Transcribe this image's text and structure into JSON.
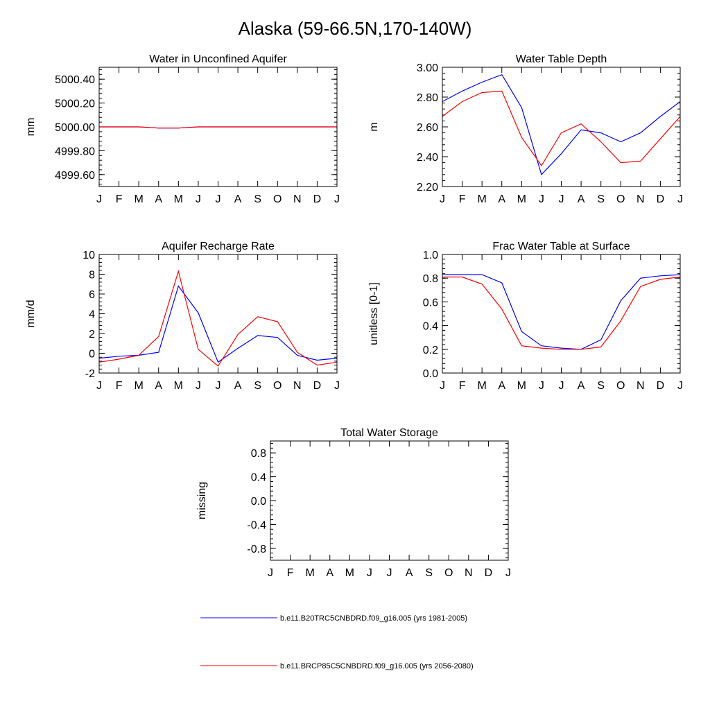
{
  "page_title": "Alaska (59-66.5N,170-140W)",
  "colors": {
    "series_1": "#0000ff",
    "series_2": "#ff0000",
    "axis": "#000000"
  },
  "legend": [
    {
      "label": "b.e11.B20TRC5CNBDRD.f09_g16.005 (yrs 1981-2005)",
      "color": "#0000ff"
    },
    {
      "label": "b.e11.BRCP85C5CNBDRD.f09_g16.005 (yrs 2056-2080)",
      "color": "#ff0000"
    }
  ],
  "chart_data": [
    {
      "type": "line",
      "title": "Water in Unconfined Aquifer",
      "ylabel": "mm",
      "categories": [
        "J",
        "F",
        "M",
        "A",
        "M",
        "J",
        "J",
        "A",
        "S",
        "O",
        "N",
        "D",
        "J"
      ],
      "ylim": [
        4999.5,
        5000.5
      ],
      "yticks": [
        4999.6,
        4999.8,
        5000.0,
        5000.2,
        5000.4
      ],
      "ytick_labels": [
        "4999.60",
        "4999.80",
        "5000.00",
        "5000.20",
        "5000.40"
      ],
      "series": [
        {
          "values": [
            5000.0,
            5000.0,
            5000.0,
            4999.99,
            4999.99,
            5000.0,
            5000.0,
            5000.0,
            5000.0,
            5000.0,
            5000.0,
            5000.0,
            5000.0
          ]
        },
        {
          "values": [
            5000.0,
            5000.0,
            5000.0,
            4999.99,
            4999.99,
            5000.0,
            5000.0,
            5000.0,
            5000.0,
            5000.0,
            5000.0,
            5000.0,
            5000.0
          ]
        }
      ]
    },
    {
      "type": "line",
      "title": "Water Table Depth",
      "ylabel": "m",
      "categories": [
        "J",
        "F",
        "M",
        "A",
        "M",
        "J",
        "J",
        "A",
        "S",
        "O",
        "N",
        "D",
        "J"
      ],
      "ylim": [
        2.2,
        3.0
      ],
      "yticks": [
        2.2,
        2.4,
        2.6,
        2.8,
        3.0
      ],
      "ytick_labels": [
        "2.20",
        "2.40",
        "2.60",
        "2.80",
        "3.00"
      ],
      "series": [
        {
          "values": [
            2.77,
            2.84,
            2.9,
            2.95,
            2.73,
            2.28,
            2.42,
            2.58,
            2.56,
            2.5,
            2.56,
            2.67,
            2.77
          ]
        },
        {
          "values": [
            2.67,
            2.77,
            2.83,
            2.84,
            2.53,
            2.34,
            2.56,
            2.62,
            2.5,
            2.36,
            2.37,
            2.52,
            2.67
          ]
        }
      ]
    },
    {
      "type": "line",
      "title": "Aquifer Recharge Rate",
      "ylabel": "mm/d",
      "categories": [
        "J",
        "F",
        "M",
        "A",
        "M",
        "J",
        "J",
        "A",
        "S",
        "O",
        "N",
        "D",
        "J"
      ],
      "ylim": [
        -2,
        10
      ],
      "yticks": [
        -2,
        0,
        2,
        4,
        6,
        8,
        10
      ],
      "ytick_labels": [
        "-2",
        "0",
        "2",
        "4",
        "6",
        "8",
        "10"
      ],
      "series": [
        {
          "values": [
            -0.5,
            -0.3,
            -0.2,
            0.1,
            6.8,
            4.1,
            -0.9,
            0.5,
            1.8,
            1.6,
            -0.2,
            -0.7,
            -0.5
          ]
        },
        {
          "values": [
            -0.9,
            -0.6,
            -0.2,
            1.7,
            8.3,
            0.4,
            -1.3,
            1.9,
            3.7,
            3.2,
            0.1,
            -1.2,
            -0.9
          ]
        }
      ]
    },
    {
      "type": "line",
      "title": "Frac Water Table at Surface",
      "ylabel": "unitless [0-1]",
      "categories": [
        "J",
        "F",
        "M",
        "A",
        "M",
        "J",
        "J",
        "A",
        "S",
        "O",
        "N",
        "D",
        "J"
      ],
      "ylim": [
        0.0,
        1.0
      ],
      "yticks": [
        0.0,
        0.2,
        0.4,
        0.6,
        0.8,
        1.0
      ],
      "ytick_labels": [
        "0.0",
        "0.2",
        "0.4",
        "0.6",
        "0.8",
        "1.0"
      ],
      "series": [
        {
          "values": [
            0.83,
            0.83,
            0.83,
            0.76,
            0.35,
            0.23,
            0.21,
            0.2,
            0.28,
            0.61,
            0.8,
            0.82,
            0.83
          ]
        },
        {
          "values": [
            0.81,
            0.81,
            0.75,
            0.54,
            0.23,
            0.21,
            0.2,
            0.2,
            0.22,
            0.44,
            0.73,
            0.79,
            0.81
          ]
        }
      ]
    },
    {
      "type": "line",
      "title": "Total Water Storage",
      "ylabel": "missing",
      "categories": [
        "J",
        "F",
        "M",
        "A",
        "M",
        "J",
        "J",
        "A",
        "S",
        "O",
        "N",
        "D",
        "J"
      ],
      "ylim": [
        -1.0,
        1.0
      ],
      "yticks": [
        -0.8,
        -0.4,
        0.0,
        0.4,
        0.8
      ],
      "ytick_labels": [
        "-0.8",
        "-0.4",
        "0.0",
        "0.4",
        "0.8"
      ],
      "series": []
    }
  ]
}
